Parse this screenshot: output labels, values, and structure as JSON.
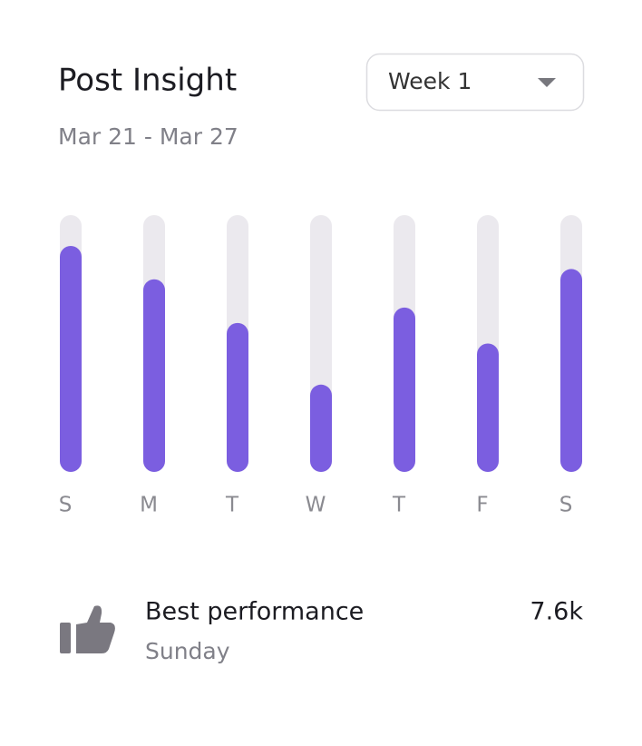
{
  "header": {
    "title": "Post Insight",
    "date_range": "Mar 21 - Mar 27",
    "dropdown": "Week 1"
  },
  "chart_data": {
    "type": "bar",
    "categories": [
      "S",
      "M",
      "T",
      "W",
      "T",
      "F",
      "S"
    ],
    "values": [
      88,
      75,
      58,
      34,
      64,
      50,
      79
    ],
    "ylim": [
      0,
      100
    ],
    "color": "#7b5ee0",
    "track_color": "#ebe9ee"
  },
  "summary": {
    "label": "Best performance",
    "day": "Sunday",
    "value": "7.6k"
  }
}
